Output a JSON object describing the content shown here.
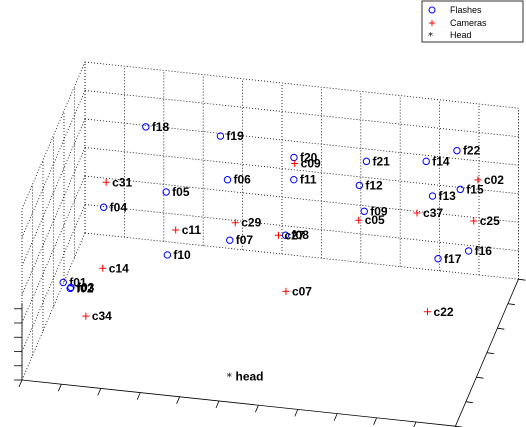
{
  "chart_data": {
    "type": "scatter",
    "projection": "3d",
    "grid": true,
    "legend_position": "top-right",
    "title": "",
    "xlabel": "",
    "ylabel": "",
    "zlabel": "",
    "legend": [
      {
        "name": "Flashes",
        "marker": "circle",
        "color": "#0000ff"
      },
      {
        "name": "Cameras",
        "marker": "plus",
        "color": "#ff0000"
      },
      {
        "name": "Head",
        "marker": "asterisk",
        "color": "#000000"
      }
    ],
    "series": [
      {
        "name": "Flashes",
        "points": [
          {
            "label": "f01",
            "x": 0.62,
            "y": -1.6,
            "z": 1.07
          },
          {
            "label": "f02",
            "x": 0.81,
            "y": -1.55,
            "z": 1.0
          },
          {
            "label": "f03",
            "x": 0.83,
            "y": -1.55,
            "z": 1.02
          },
          {
            "label": "f04",
            "x": 1.3,
            "y": -2.9,
            "z": 1.88
          },
          {
            "label": "f05",
            "x": 2.7,
            "y": -3.6,
            "z": 1.95
          },
          {
            "label": "f06",
            "x": 4.15,
            "y": -4.0,
            "z": 2.1
          },
          {
            "label": "f07",
            "x": 4.3,
            "y": -3.65,
            "z": 1.2
          },
          {
            "label": "f08",
            "x": 5.65,
            "y": -3.9,
            "z": 1.28
          },
          {
            "label": "f09",
            "x": 7.5,
            "y": -4.45,
            "z": 1.6
          },
          {
            "label": "f10",
            "x": 2.85,
            "y": -3.15,
            "z": 1.05
          },
          {
            "label": "f11",
            "x": 5.7,
            "y": -4.5,
            "z": 2.0
          },
          {
            "label": "f12",
            "x": 7.35,
            "y": -4.55,
            "z": 2.0
          },
          {
            "label": "f13",
            "x": 9.1,
            "y": -4.95,
            "z": 1.77
          },
          {
            "label": "f14",
            "x": 8.9,
            "y": -5.1,
            "z": 2.3
          },
          {
            "label": "f15",
            "x": 9.8,
            "y": -4.97,
            "z": 1.93
          },
          {
            "label": "f16",
            "x": 10.15,
            "y": -4.45,
            "z": 1.1
          },
          {
            "label": "f17",
            "x": 9.4,
            "y": -4.35,
            "z": 0.95
          },
          {
            "label": "f18",
            "x": 2.05,
            "y": -4.1,
            "z": 2.83
          },
          {
            "label": "f19",
            "x": 3.85,
            "y": -4.45,
            "z": 2.65
          },
          {
            "label": "f20",
            "x": 5.65,
            "y": -4.7,
            "z": 2.3
          },
          {
            "label": "f21",
            "x": 7.45,
            "y": -4.85,
            "z": 2.3
          },
          {
            "label": "f22",
            "x": 9.6,
            "y": -5.4,
            "z": 2.41
          }
        ]
      },
      {
        "name": "Cameras",
        "points": [
          {
            "label": "c02",
            "x": 10.2,
            "y": -5.15,
            "z": 2.05
          },
          {
            "label": "c05",
            "x": 7.4,
            "y": -4.3,
            "z": 1.5
          },
          {
            "label": "c07",
            "x": 5.9,
            "y": -3.0,
            "z": 0.7
          },
          {
            "label": "c11",
            "x": 3.0,
            "y": -3.38,
            "z": 1.4
          },
          {
            "label": "c14",
            "x": 1.45,
            "y": -2.25,
            "z": 1.1
          },
          {
            "label": "c22",
            "x": 9.4,
            "y": -3.35,
            "z": 0.45
          },
          {
            "label": "c25",
            "x": 10.2,
            "y": -4.75,
            "z": 1.5
          },
          {
            "label": "c27",
            "x": 5.55,
            "y": -3.6,
            "z": 1.4
          },
          {
            "label": "c29",
            "x": 4.4,
            "y": -3.8,
            "z": 1.45
          },
          {
            "label": "c31",
            "x": 1.35,
            "y": -2.95,
            "z": 2.3
          },
          {
            "label": "c34",
            "x": 1.3,
            "y": -1.2,
            "z": 0.7
          },
          {
            "label": "c37",
            "x": 8.8,
            "y": -4.6,
            "z": 1.6
          },
          {
            "label": "c09",
            "x": 5.7,
            "y": -4.58,
            "z": 2.25
          }
        ]
      },
      {
        "name": "Head",
        "points": [
          {
            "label": "head",
            "x": 5.0,
            "y": -1.0,
            "z": 0.0
          }
        ]
      }
    ],
    "overlapping_labels": [
      {
        "label": "f02",
        "display": "f02"
      },
      {
        "label": "f03",
        "display": "f03"
      },
      {
        "label": "f20",
        "display": "f20"
      },
      {
        "label": "c09",
        "display": "c09"
      }
    ],
    "xlim": [
      0,
      11
    ],
    "ylim": [
      -6,
      0
    ],
    "zlim": [
      0,
      3
    ]
  }
}
